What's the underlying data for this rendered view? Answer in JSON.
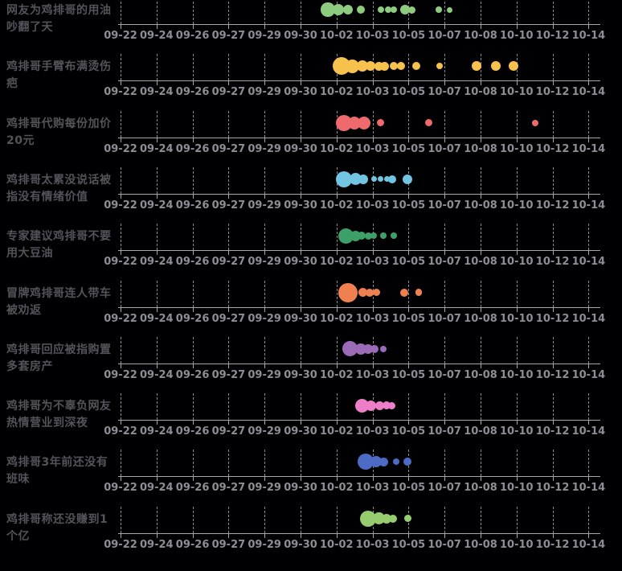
{
  "chart_data": {
    "type": "scatter",
    "subtype": "bubble-timeline-strips",
    "title": "",
    "xlabel": "",
    "ylabel": "",
    "grid": "dashed-vertical",
    "x_ticks": [
      "09-22",
      "09-24",
      "09-26",
      "09-27",
      "09-29",
      "09-30",
      "10-02",
      "10-03",
      "10-05",
      "10-07",
      "10-08",
      "10-10",
      "10-12",
      "10-14"
    ],
    "note_point_format": "t = x position in tick units (0 = 09-22 ... 13 = 10-14), r = bubble radius px (heat)",
    "series": [
      {
        "name": "网友为鸡排哥的用油吵翻了天",
        "label_lines": [
          "网友为鸡排哥的用油",
          "吵翻了天"
        ],
        "color": "#8DCB7E",
        "points": [
          {
            "t": 5.76,
            "r": 8.7
          },
          {
            "t": 6.05,
            "r": 7.2
          },
          {
            "t": 6.32,
            "r": 6.3
          },
          {
            "t": 6.67,
            "r": 5
          },
          {
            "t": 7.23,
            "r": 4
          },
          {
            "t": 7.43,
            "r": 4
          },
          {
            "t": 7.59,
            "r": 4
          },
          {
            "t": 7.9,
            "r": 6
          },
          {
            "t": 8.1,
            "r": 4.5
          },
          {
            "t": 8.84,
            "r": 3.8
          },
          {
            "t": 9.15,
            "r": 3.5
          }
        ]
      },
      {
        "name": "鸡排哥手臂布满烫伤疤",
        "label_lines": [
          "鸡排哥手臂布满烫伤",
          "疤"
        ],
        "color": "#F6C14D",
        "points": [
          {
            "t": 6.14,
            "r": 11
          },
          {
            "t": 6.45,
            "r": 8.5
          },
          {
            "t": 6.72,
            "r": 7
          },
          {
            "t": 6.94,
            "r": 6
          },
          {
            "t": 7.17,
            "r": 5.5
          },
          {
            "t": 7.34,
            "r": 5.5
          },
          {
            "t": 7.59,
            "r": 5
          },
          {
            "t": 7.79,
            "r": 5
          },
          {
            "t": 8.21,
            "r": 5
          },
          {
            "t": 8.86,
            "r": 4.2
          },
          {
            "t": 9.89,
            "r": 6
          },
          {
            "t": 10.42,
            "r": 6
          },
          {
            "t": 10.91,
            "r": 6
          }
        ]
      },
      {
        "name": "鸡排哥代购每份加价20元",
        "label_lines": [
          "鸡排哥代购每份加价",
          "20元"
        ],
        "color": "#EE6A6D",
        "points": [
          {
            "t": 6.21,
            "r": 10
          },
          {
            "t": 6.5,
            "r": 8
          },
          {
            "t": 6.76,
            "r": 8
          },
          {
            "t": 7.23,
            "r": 4.5
          },
          {
            "t": 8.57,
            "r": 4.5
          },
          {
            "t": 11.52,
            "r": 4
          }
        ]
      },
      {
        "name": "鸡排哥太累没说话被指没有情绪价值",
        "label_lines": [
          "鸡排哥太累没说话被",
          "指没有情绪价值"
        ],
        "color": "#71C4E2",
        "points": [
          {
            "t": 6.21,
            "r": 10
          },
          {
            "t": 6.52,
            "r": 7.5
          },
          {
            "t": 6.74,
            "r": 6
          },
          {
            "t": 7.05,
            "r": 3.5
          },
          {
            "t": 7.23,
            "r": 3.5
          },
          {
            "t": 7.39,
            "r": 3.5
          },
          {
            "t": 7.54,
            "r": 5
          },
          {
            "t": 7.97,
            "r": 6
          }
        ]
      },
      {
        "name": "专家建议鸡排哥不要用大豆油",
        "label_lines": [
          "专家建议鸡排哥不要",
          "用大豆油"
        ],
        "color": "#3EA069",
        "points": [
          {
            "t": 6.25,
            "r": 9.5
          },
          {
            "t": 6.52,
            "r": 6.5
          },
          {
            "t": 6.7,
            "r": 5
          },
          {
            "t": 6.88,
            "r": 4.5
          },
          {
            "t": 7.03,
            "r": 4.2
          },
          {
            "t": 7.3,
            "r": 3.8
          },
          {
            "t": 7.59,
            "r": 3.8
          }
        ]
      },
      {
        "name": "冒牌鸡排哥连人带车被劝返",
        "label_lines": [
          "冒牌鸡排哥连人带车",
          "被劝返"
        ],
        "color": "#F08050",
        "points": [
          {
            "t": 6.32,
            "r": 12
          },
          {
            "t": 6.72,
            "r": 5.5
          },
          {
            "t": 6.92,
            "r": 5
          },
          {
            "t": 7.1,
            "r": 4.5
          },
          {
            "t": 7.88,
            "r": 5
          },
          {
            "t": 8.28,
            "r": 4.3
          }
        ]
      },
      {
        "name": "鸡排哥回应被指购置多套房产",
        "label_lines": [
          "鸡排哥回应被指购置",
          "多套房产"
        ],
        "color": "#9B6BB8",
        "points": [
          {
            "t": 6.38,
            "r": 9.5
          },
          {
            "t": 6.67,
            "r": 7
          },
          {
            "t": 6.88,
            "r": 6
          },
          {
            "t": 7.05,
            "r": 5
          },
          {
            "t": 7.3,
            "r": 4
          }
        ]
      },
      {
        "name": "鸡排哥为不辜负网友热情营业到深夜",
        "label_lines": [
          "鸡排哥为不辜负网友",
          "热情营业到深夜"
        ],
        "color": "#EE7EC7",
        "points": [
          {
            "t": 6.7,
            "r": 8.5
          },
          {
            "t": 6.96,
            "r": 6.5
          },
          {
            "t": 7.19,
            "r": 5.5
          },
          {
            "t": 7.39,
            "r": 5
          },
          {
            "t": 7.54,
            "r": 4.5
          }
        ]
      },
      {
        "name": "鸡排哥3年前还没有班味",
        "label_lines": [
          "鸡排哥3年前还没有",
          "班味"
        ],
        "color": "#4D6BC5",
        "points": [
          {
            "t": 6.81,
            "r": 10
          },
          {
            "t": 7.1,
            "r": 7
          },
          {
            "t": 7.3,
            "r": 5.5
          },
          {
            "t": 7.66,
            "r": 4
          },
          {
            "t": 7.97,
            "r": 5
          }
        ]
      },
      {
        "name": "鸡排哥称还没赚到1个亿",
        "label_lines": [
          "鸡排哥称还没赚到1",
          "个亿"
        ],
        "color": "#96CB6E",
        "points": [
          {
            "t": 6.88,
            "r": 10
          },
          {
            "t": 7.17,
            "r": 7.5
          },
          {
            "t": 7.39,
            "r": 6
          },
          {
            "t": 7.57,
            "r": 5
          },
          {
            "t": 7.99,
            "r": 4.5
          }
        ]
      }
    ],
    "layout_colors": {
      "background": "#000003",
      "axis_line": "#a6a6ae",
      "tick_label": "#8d8d95",
      "row_label": "#53535a",
      "gridline": "rgba(255,255,255,0.55)"
    }
  }
}
